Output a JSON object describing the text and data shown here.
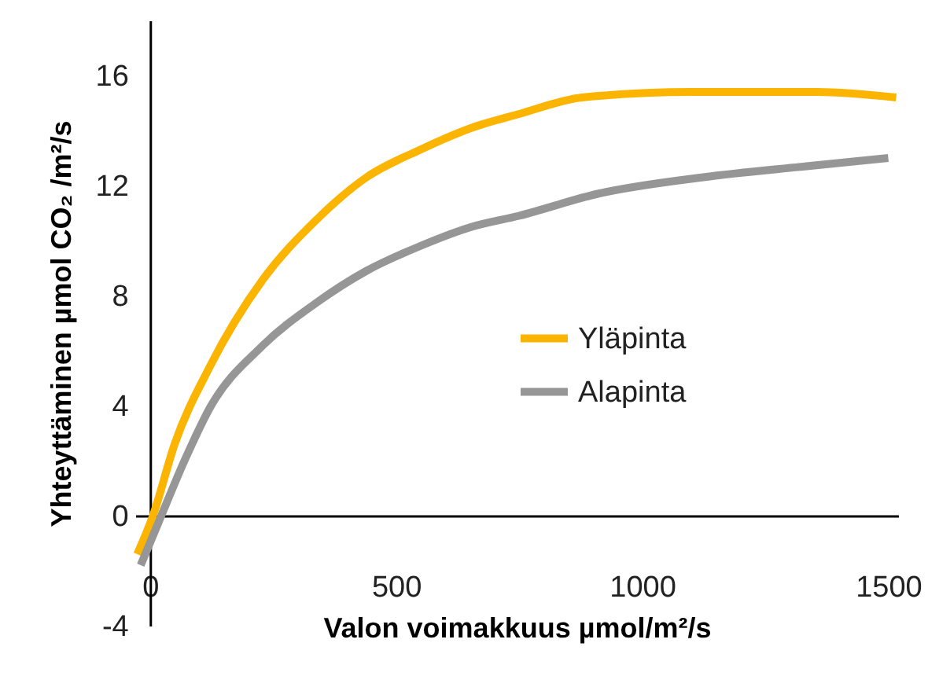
{
  "chart_data": {
    "type": "line",
    "xlabel": "Valon voimakkuus µmol/m²/s",
    "ylabel": "Yhteyttäminen µmol CO₂ /m²/s",
    "xlim": [
      -30,
      1520
    ],
    "ylim": [
      -4,
      18
    ],
    "xticks": [
      0,
      500,
      1000,
      1500
    ],
    "yticks": [
      -4,
      0,
      4,
      8,
      12,
      16
    ],
    "grid": false,
    "legend": "right",
    "marker": "none",
    "line_style": "solid",
    "series": [
      {
        "name": "Yläpinta",
        "color": "#fbb400",
        "x": [
          -26,
          6,
          50,
          121,
          230,
          335,
          440,
          549,
          654,
          750,
          878,
          1101,
          1356,
          1516
        ],
        "values": [
          -1.4,
          0,
          2.6,
          5.4,
          8.6,
          10.7,
          12.3,
          13.3,
          14.1,
          14.6,
          15.2,
          15.4,
          15.4,
          15.2
        ]
      },
      {
        "name": "Alapinta",
        "color": "#969696",
        "x": [
          -19,
          16,
          70,
          121,
          230,
          335,
          440,
          549,
          654,
          750,
          910,
          1124,
          1334,
          1500
        ],
        "values": [
          -1.8,
          -0.3,
          2.0,
          3.9,
          6.2,
          7.7,
          8.9,
          9.8,
          10.5,
          10.9,
          11.7,
          12.3,
          12.7,
          13.0
        ]
      }
    ]
  }
}
